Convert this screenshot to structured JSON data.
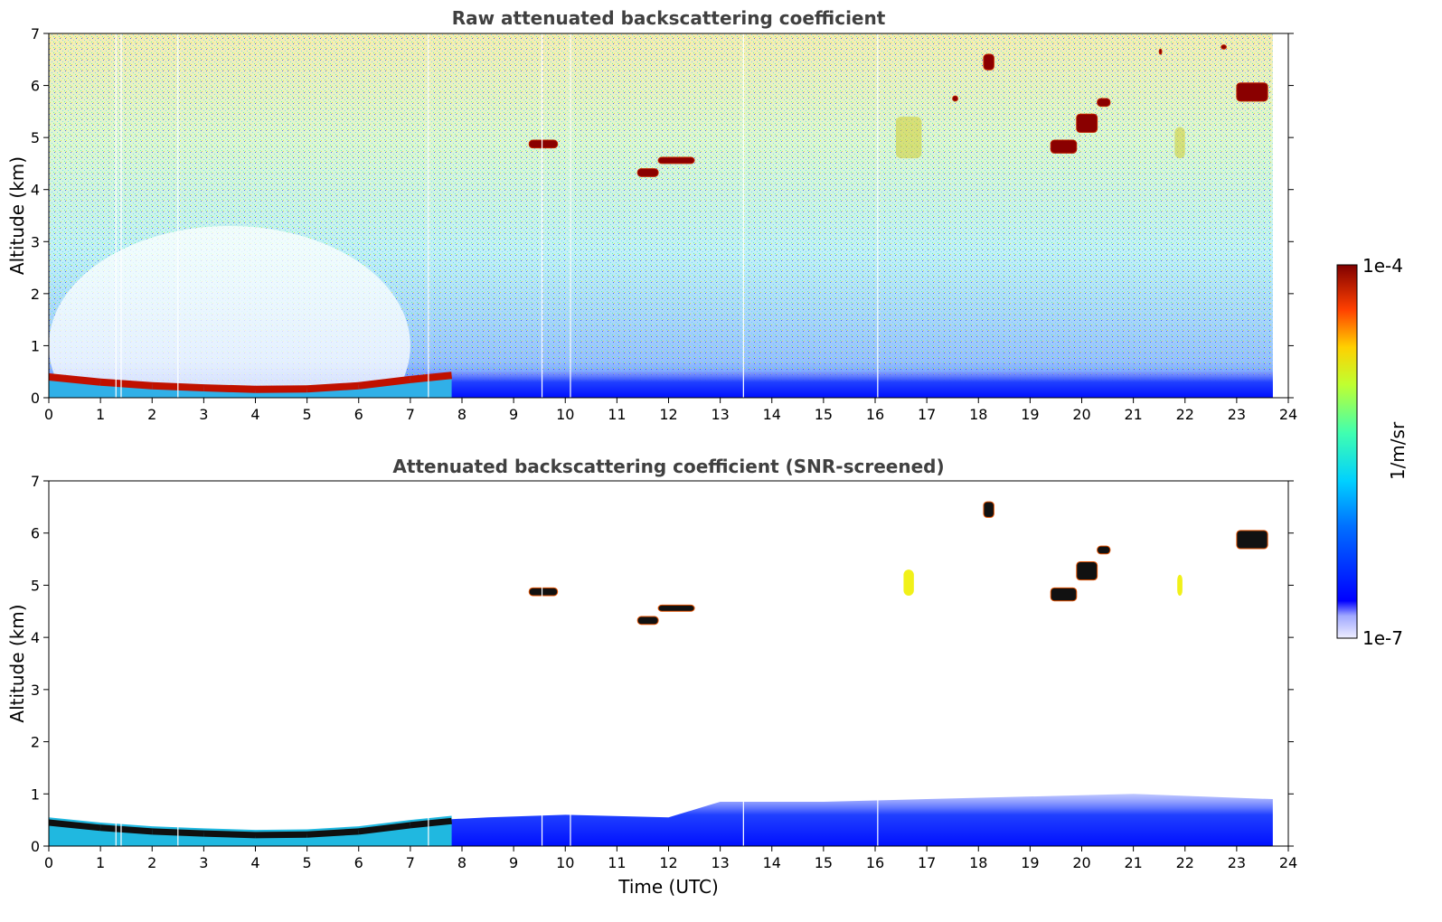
{
  "chart_data": [
    {
      "type": "heatmap",
      "title": "Raw attenuated backscattering coefficient",
      "xlabel": "",
      "ylabel": "Altitude (km)",
      "xlim": [
        0,
        24
      ],
      "ylim": [
        0,
        7
      ],
      "xticks": [
        "0",
        "1",
        "2",
        "3",
        "4",
        "5",
        "6",
        "7",
        "8",
        "9",
        "10",
        "11",
        "12",
        "13",
        "14",
        "15",
        "16",
        "17",
        "18",
        "19",
        "20",
        "21",
        "22",
        "23",
        "24"
      ],
      "yticks": [
        "0",
        "1",
        "2",
        "3",
        "4",
        "5",
        "6",
        "7"
      ],
      "data_end_time": 23.7,
      "boundary_layer": [
        {
          "t": 0.0,
          "h": 0.45
        },
        {
          "t": 1.0,
          "h": 0.35
        },
        {
          "t": 2.0,
          "h": 0.28
        },
        {
          "t": 3.0,
          "h": 0.24
        },
        {
          "t": 4.0,
          "h": 0.21
        },
        {
          "t": 5.0,
          "h": 0.22
        },
        {
          "t": 6.0,
          "h": 0.28
        },
        {
          "t": 7.0,
          "h": 0.4
        },
        {
          "t": 7.8,
          "h": 0.48
        }
      ],
      "cloud_layers": [
        {
          "t0": 9.3,
          "t1": 9.85,
          "h0": 4.8,
          "h1": 4.95
        },
        {
          "t0": 11.4,
          "t1": 11.8,
          "h0": 4.25,
          "h1": 4.4
        },
        {
          "t0": 11.8,
          "t1": 12.5,
          "h0": 4.5,
          "h1": 4.62
        },
        {
          "t0": 18.1,
          "t1": 18.3,
          "h0": 6.3,
          "h1": 6.6
        },
        {
          "t0": 19.4,
          "t1": 19.9,
          "h0": 4.7,
          "h1": 4.95
        },
        {
          "t0": 19.9,
          "t1": 20.3,
          "h0": 5.1,
          "h1": 5.45
        },
        {
          "t0": 20.3,
          "t1": 20.55,
          "h0": 5.6,
          "h1": 5.75
        },
        {
          "t0": 23.0,
          "t1": 23.6,
          "h0": 5.7,
          "h1": 6.05
        },
        {
          "t0": 21.5,
          "t1": 21.55,
          "h0": 6.6,
          "h1": 6.7
        },
        {
          "t0": 22.7,
          "t1": 22.8,
          "h0": 6.7,
          "h1": 6.78
        },
        {
          "t0": 17.5,
          "t1": 17.6,
          "h0": 5.7,
          "h1": 5.8
        }
      ],
      "aerosol_plumes": [
        {
          "t0": 16.4,
          "t1": 16.9,
          "h0": 4.6,
          "h1": 5.4
        },
        {
          "t0": 21.8,
          "t1": 22.0,
          "h0": 4.6,
          "h1": 5.2
        }
      ]
    },
    {
      "type": "heatmap",
      "title": "Attenuated backscattering coefficient (SNR-screened)",
      "xlabel": "Time (UTC)",
      "ylabel": "Altitude (km)",
      "xlim": [
        0,
        24
      ],
      "ylim": [
        0,
        7
      ],
      "xticks": [
        "0",
        "1",
        "2",
        "3",
        "4",
        "5",
        "6",
        "7",
        "8",
        "9",
        "10",
        "11",
        "12",
        "13",
        "14",
        "15",
        "16",
        "17",
        "18",
        "19",
        "20",
        "21",
        "22",
        "23",
        "24"
      ],
      "yticks": [
        "0",
        "1",
        "2",
        "3",
        "4",
        "5",
        "6",
        "7"
      ],
      "data_end_time": 23.7,
      "screened_layer_top": [
        {
          "t": 7.5,
          "h": 0.5
        },
        {
          "t": 8.5,
          "h": 0.55
        },
        {
          "t": 10.0,
          "h": 0.6
        },
        {
          "t": 12.0,
          "h": 0.55
        },
        {
          "t": 13.0,
          "h": 0.85
        },
        {
          "t": 15.0,
          "h": 0.85
        },
        {
          "t": 17.0,
          "h": 0.9
        },
        {
          "t": 19.0,
          "h": 0.95
        },
        {
          "t": 21.0,
          "h": 1.0
        },
        {
          "t": 23.7,
          "h": 0.9
        }
      ],
      "cloud_layers": [
        {
          "t0": 9.3,
          "t1": 9.85,
          "h0": 4.8,
          "h1": 4.95
        },
        {
          "t0": 11.4,
          "t1": 11.8,
          "h0": 4.25,
          "h1": 4.4
        },
        {
          "t0": 11.8,
          "t1": 12.5,
          "h0": 4.5,
          "h1": 4.62
        },
        {
          "t0": 18.1,
          "t1": 18.3,
          "h0": 6.3,
          "h1": 6.6
        },
        {
          "t0": 19.4,
          "t1": 19.9,
          "h0": 4.7,
          "h1": 4.95
        },
        {
          "t0": 19.9,
          "t1": 20.3,
          "h0": 5.1,
          "h1": 5.45
        },
        {
          "t0": 20.3,
          "t1": 20.55,
          "h0": 5.6,
          "h1": 5.75
        },
        {
          "t0": 23.0,
          "t1": 23.6,
          "h0": 5.7,
          "h1": 6.05
        }
      ],
      "aerosol_plumes": [
        {
          "t0": 16.55,
          "t1": 16.75,
          "h0": 4.8,
          "h1": 5.3
        },
        {
          "t0": 21.85,
          "t1": 21.95,
          "h0": 4.8,
          "h1": 5.2
        }
      ]
    }
  ],
  "colorbar": {
    "min_label": "1e-7",
    "max_label": "1e-4",
    "unit_label": "1/m/sr",
    "colormap": "jet"
  }
}
